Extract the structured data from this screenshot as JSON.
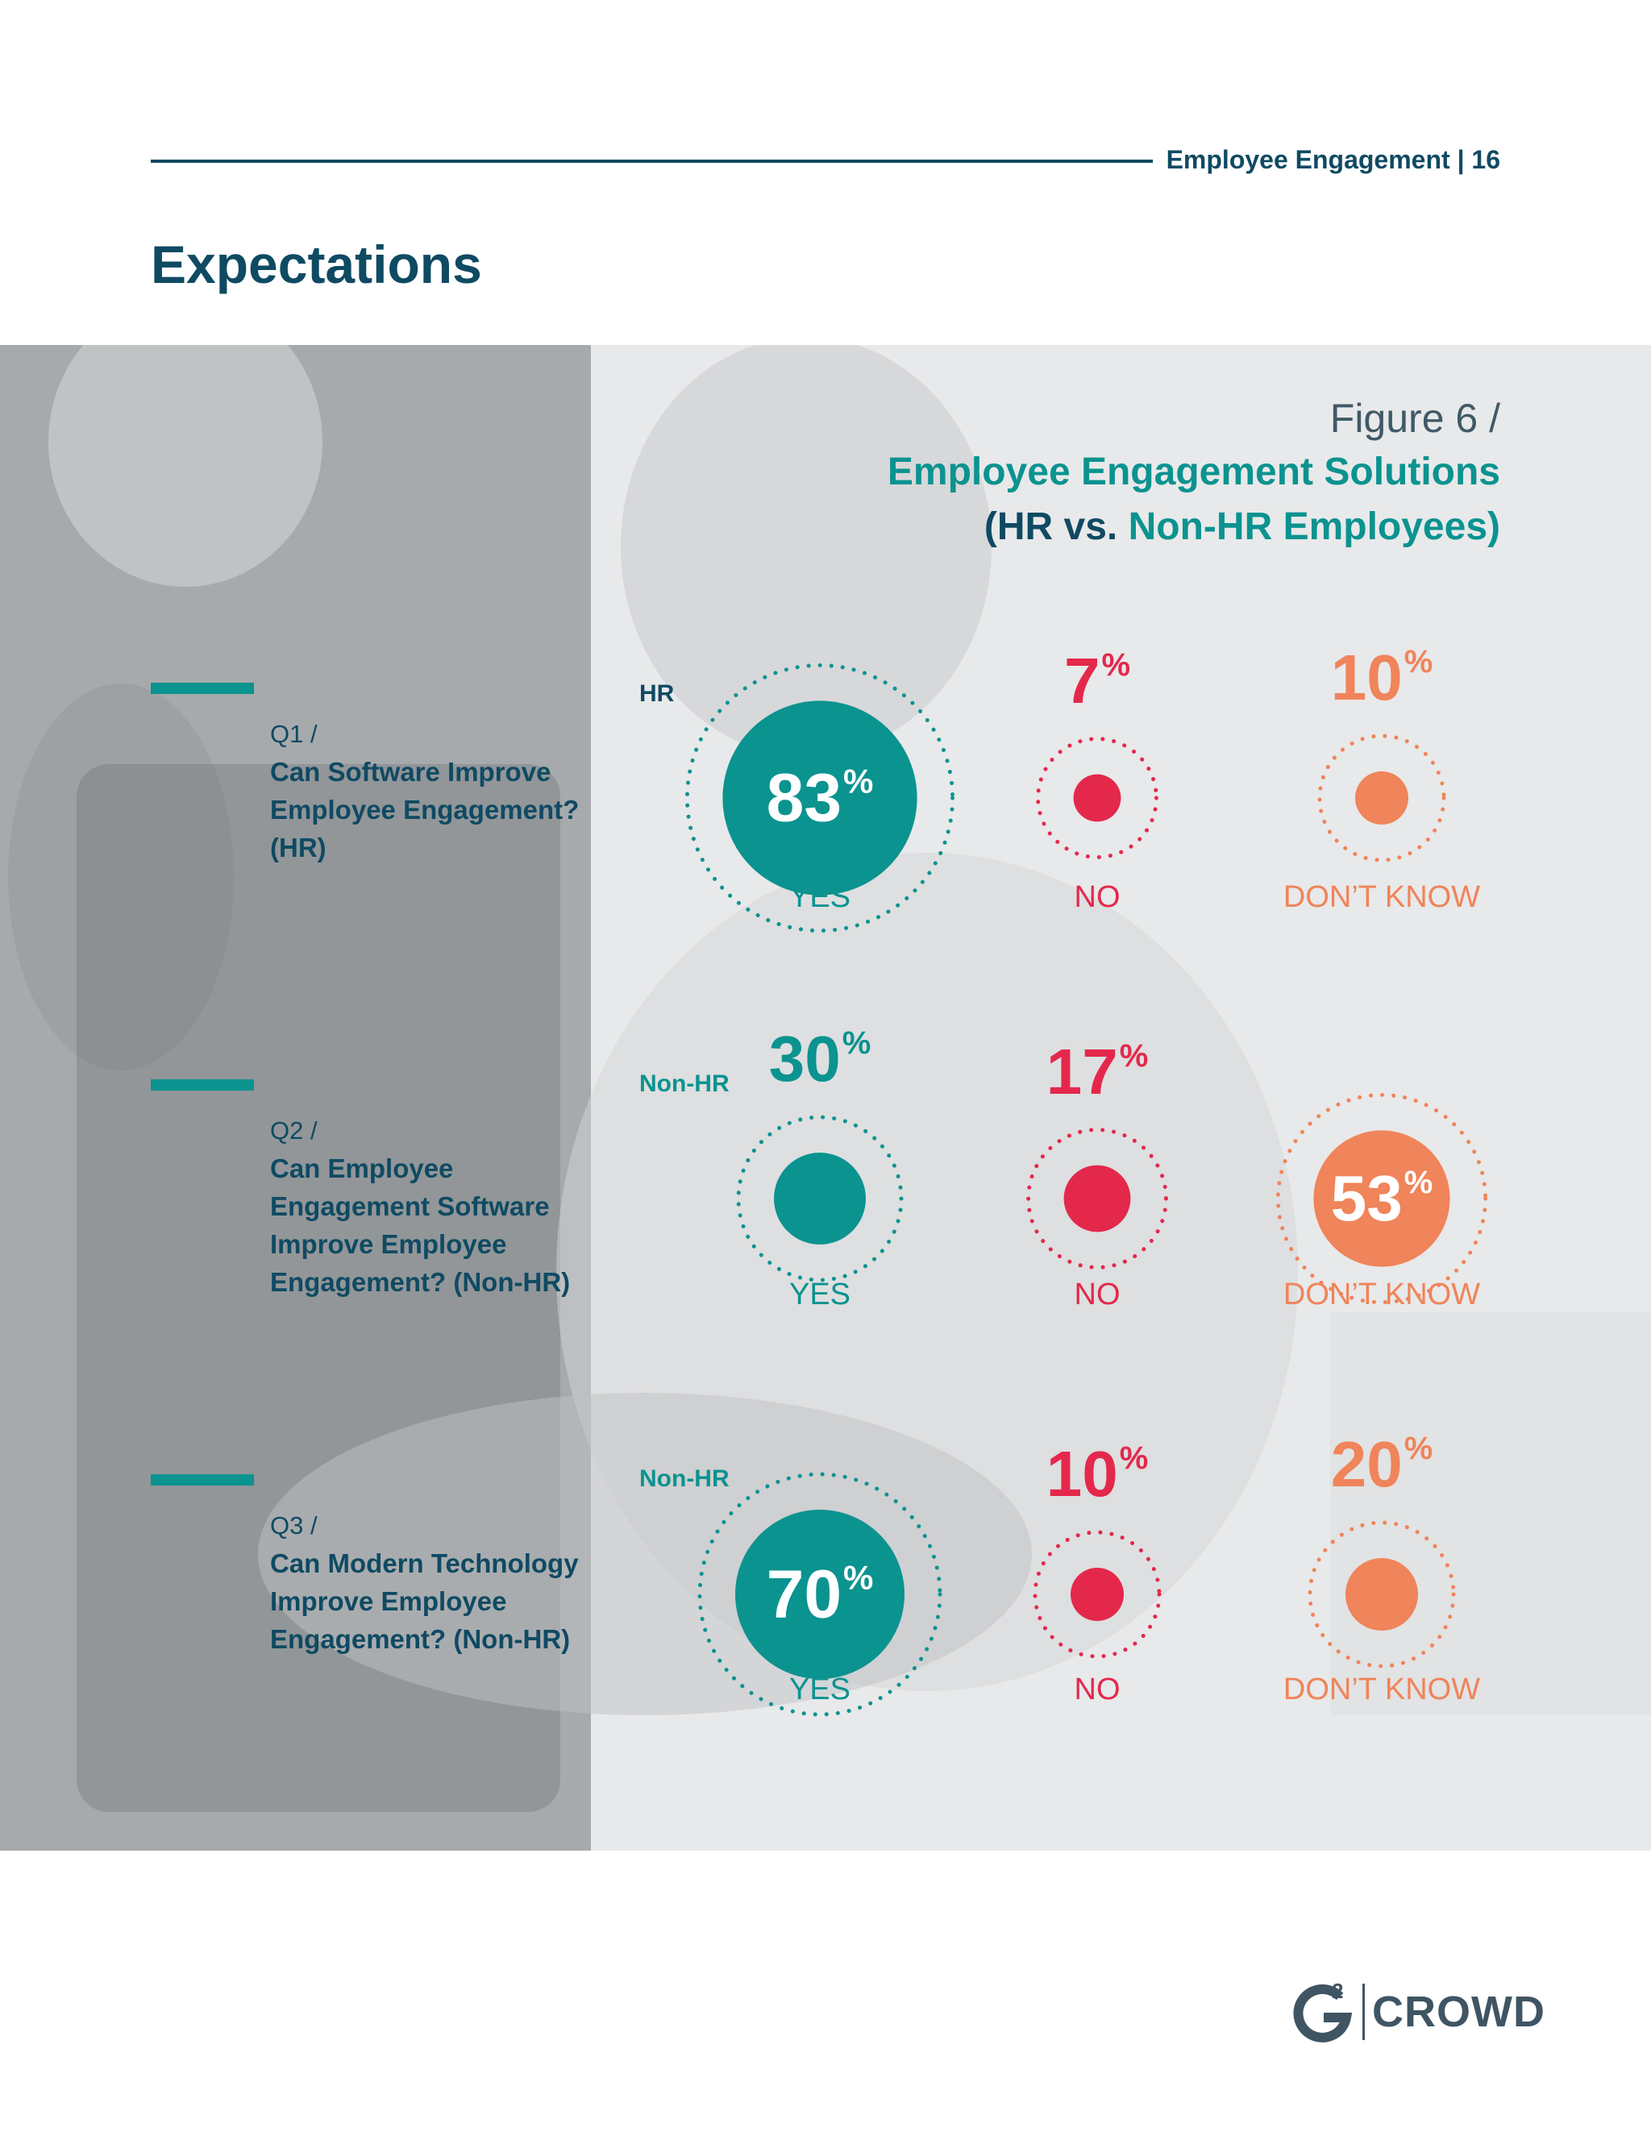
{
  "header": {
    "section": "Employee Engagement | 16"
  },
  "page_title": "Expectations",
  "figure": {
    "label": "Figure 6 /",
    "title_line1": "Employee Engagement Solutions",
    "title_line2_open": "(",
    "title_line2_hr": "HR vs.",
    "title_line2_nonhr": "Non-HR Employees)"
  },
  "questions": [
    {
      "num": "Q1 /",
      "text": "Can Software Improve Employee Engagement? (HR)",
      "group": "HR"
    },
    {
      "num": "Q2 /",
      "text": "Can Employee Engagement Software Improve Employee Engagement? (Non-HR)",
      "group": "Non-HR"
    },
    {
      "num": "Q3 /",
      "text": "Can Modern Technology Improve Employee Engagement? (Non-HR)",
      "group": "Non-HR"
    }
  ],
  "answer_labels": {
    "yes": "YES",
    "no": "NO",
    "dont_know": "DON’T KNOW"
  },
  "percent_sign": "%",
  "colors": {
    "yes": "#0b9390",
    "no": "#e4284c",
    "dont_know": "#f0845a",
    "navy": "#0f4a63"
  },
  "chart_data": {
    "type": "bubble",
    "categories": [
      "YES",
      "NO",
      "DON’T KNOW"
    ],
    "series": [
      {
        "name": "HR",
        "values": [
          83,
          7,
          10
        ]
      },
      {
        "name": "Non-HR",
        "values": [
          30,
          17,
          53
        ]
      },
      {
        "name": "Non-HR",
        "values": [
          70,
          10,
          20
        ]
      }
    ],
    "unit": "%"
  },
  "logo": {
    "superscript": "2",
    "text": "CROWD"
  }
}
